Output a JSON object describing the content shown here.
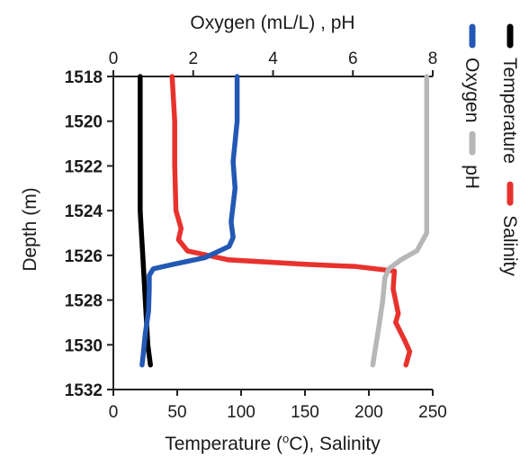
{
  "chart_data": {
    "type": "line",
    "top_axis": {
      "label": "Oxygen (mL/L) , pH",
      "range": [
        0,
        8
      ],
      "ticks": [
        0,
        2,
        4,
        6,
        8
      ],
      "tick_labels": [
        "0",
        "2",
        "4",
        "6",
        "8"
      ]
    },
    "bottom_axis": {
      "label_prefix": "Temperature (",
      "label_sup": "o",
      "label_suffix": "C), Salinity",
      "range": [
        0,
        250
      ],
      "ticks": [
        0,
        50,
        100,
        150,
        200,
        250
      ],
      "tick_labels": [
        "0",
        "50",
        "100",
        "150",
        "200",
        "250"
      ]
    },
    "y_axis": {
      "label": "Depth (m)",
      "range": [
        1518,
        1532
      ],
      "inverted": true,
      "ticks": [
        1518,
        1520,
        1522,
        1524,
        1526,
        1528,
        1530,
        1532
      ],
      "tick_labels": [
        "1518",
        "1520",
        "1522",
        "1524",
        "1526",
        "1528",
        "1530",
        "1532"
      ]
    },
    "series": [
      {
        "name": "Temperature",
        "color": "#000000",
        "axis": "bottom",
        "points": [
          [
            21,
            1518
          ],
          [
            21,
            1520
          ],
          [
            21,
            1522
          ],
          [
            21,
            1524
          ],
          [
            22,
            1525
          ],
          [
            23,
            1526
          ],
          [
            24,
            1527
          ],
          [
            25,
            1528
          ],
          [
            26,
            1529
          ],
          [
            27,
            1530
          ],
          [
            29,
            1530.9
          ]
        ]
      },
      {
        "name": "Salinity",
        "color": "#e8322d",
        "axis": "bottom",
        "points": [
          [
            46,
            1518
          ],
          [
            48,
            1520
          ],
          [
            48,
            1522
          ],
          [
            49,
            1524
          ],
          [
            53,
            1524.8
          ],
          [
            51,
            1525.3
          ],
          [
            58,
            1525.8
          ],
          [
            90,
            1526.2
          ],
          [
            150,
            1526.4
          ],
          [
            190,
            1526.5
          ],
          [
            220,
            1526.7
          ],
          [
            219,
            1527.5
          ],
          [
            223,
            1528.6
          ],
          [
            221,
            1529
          ],
          [
            228,
            1529.8
          ],
          [
            232,
            1530.3
          ],
          [
            229,
            1530.9
          ]
        ]
      },
      {
        "name": "Oxygen",
        "color": "#2358b4",
        "axis": "top",
        "points": [
          [
            3.1,
            1518
          ],
          [
            3.1,
            1520
          ],
          [
            3.0,
            1521.8
          ],
          [
            3.05,
            1523
          ],
          [
            2.95,
            1524.5
          ],
          [
            3.0,
            1525.2
          ],
          [
            2.9,
            1525.6
          ],
          [
            2.3,
            1526.1
          ],
          [
            1.5,
            1526.4
          ],
          [
            1.0,
            1526.6
          ],
          [
            0.9,
            1526.9
          ],
          [
            0.9,
            1527.5
          ],
          [
            0.88,
            1528.5
          ],
          [
            0.8,
            1529.5
          ],
          [
            0.75,
            1530.4
          ],
          [
            0.72,
            1530.9
          ]
        ]
      },
      {
        "name": "pH",
        "color": "#b7b7b7",
        "axis": "top",
        "points": [
          [
            7.85,
            1518
          ],
          [
            7.85,
            1520
          ],
          [
            7.85,
            1522
          ],
          [
            7.85,
            1524
          ],
          [
            7.85,
            1525
          ],
          [
            7.6,
            1525.8
          ],
          [
            7.2,
            1526.2
          ],
          [
            6.9,
            1526.6
          ],
          [
            6.8,
            1527
          ],
          [
            6.75,
            1528
          ],
          [
            6.65,
            1529.2
          ],
          [
            6.55,
            1530.3
          ],
          [
            6.5,
            1530.9
          ]
        ]
      }
    ],
    "legend": {
      "placement": "right",
      "orientation": "rotated-90",
      "entries": [
        "Temperature",
        "Salinity",
        "Oxygen",
        "pH"
      ]
    },
    "grid": false
  }
}
